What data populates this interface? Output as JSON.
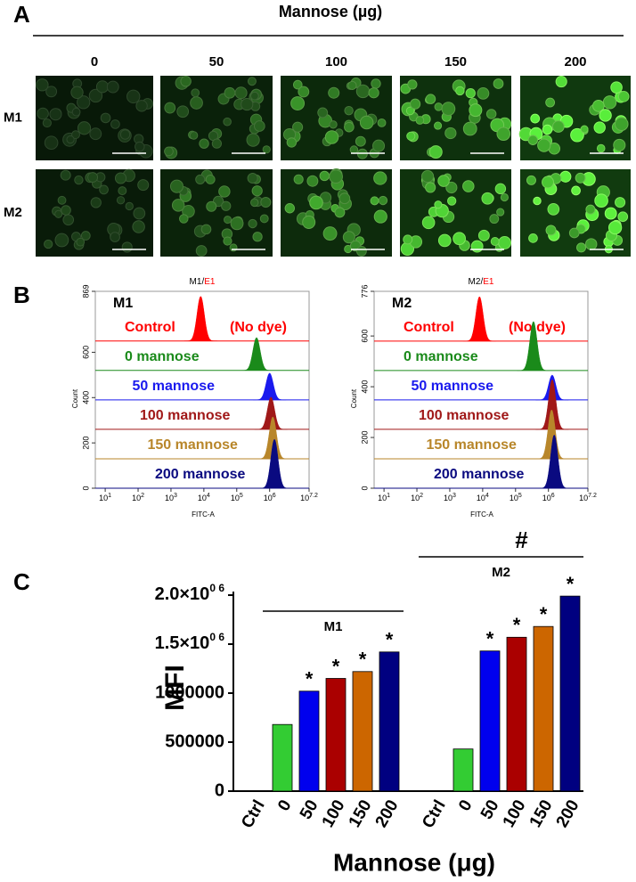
{
  "panel_labels": [
    "A",
    "B",
    "C"
  ],
  "micrographs": {
    "title": "Mannose (µg)",
    "columns": [
      "0",
      "50",
      "100",
      "150",
      "200"
    ],
    "rows": [
      "M1",
      "M2"
    ]
  },
  "chart_data": [
    {
      "type": "histogram_overlay",
      "title": "M1/",
      "title_gate": "E1",
      "title_gate_color": "#ff0000",
      "label": "M1",
      "annotation": "(No dye)",
      "xlabel": "FITC-A",
      "ylabel": "Count",
      "log_x": true,
      "xlim": [
        5,
        15848932
      ],
      "xticks": [
        {
          "value": 10,
          "label": "10",
          "exponent": "1"
        },
        {
          "value": 100,
          "label": "10",
          "exponent": "2"
        },
        {
          "value": 1000,
          "label": "10",
          "exponent": "3"
        },
        {
          "value": 10000,
          "label": "10",
          "exponent": "4"
        },
        {
          "value": 100000,
          "label": "10",
          "exponent": "5"
        },
        {
          "value": 1000000,
          "label": "10",
          "exponent": "6"
        },
        {
          "value": 15848932,
          "label": "10",
          "exponent": "7.2"
        }
      ],
      "ylim": [
        0,
        869
      ],
      "yticks": [
        0,
        200,
        400,
        600,
        869
      ],
      "series": [
        {
          "name": "Control",
          "color": "#ff0000",
          "offset": 650,
          "peak": 8000,
          "height": 197
        },
        {
          "name": "0 mannose",
          "color": "#1a8a1a",
          "offset": 520,
          "peak": 400000,
          "height": 145
        },
        {
          "name": "50 mannose",
          "color": "#1a1aee",
          "offset": 390,
          "peak": 1000000,
          "height": 118
        },
        {
          "name": "100 mannose",
          "color": "#a01818",
          "offset": 260,
          "peak": 1100000,
          "height": 142
        },
        {
          "name": "150 mannose",
          "color": "#b8862a",
          "offset": 130,
          "peak": 1250000,
          "height": 185
        },
        {
          "name": "200 mannose",
          "color": "#0a0a80",
          "offset": 0,
          "peak": 1400000,
          "height": 216
        }
      ]
    },
    {
      "type": "histogram_overlay",
      "title": "M2/",
      "title_gate": "E1",
      "title_gate_color": "#ff0000",
      "label": "M2",
      "annotation": "(No dye)",
      "xlabel": "FITC-A",
      "ylabel": "Count",
      "log_x": true,
      "xlim": [
        5,
        15848932
      ],
      "xticks": [
        {
          "value": 10,
          "label": "10",
          "exponent": "1"
        },
        {
          "value": 100,
          "label": "10",
          "exponent": "2"
        },
        {
          "value": 1000,
          "label": "10",
          "exponent": "3"
        },
        {
          "value": 10000,
          "label": "10",
          "exponent": "4"
        },
        {
          "value": 100000,
          "label": "10",
          "exponent": "5"
        },
        {
          "value": 1000000,
          "label": "10",
          "exponent": "6"
        },
        {
          "value": 15848932,
          "label": "10",
          "exponent": "7.2"
        }
      ],
      "ylim": [
        0,
        776
      ],
      "yticks": [
        0,
        200,
        400,
        600,
        776
      ],
      "series": [
        {
          "name": "Control",
          "color": "#ff0000",
          "offset": 580,
          "peak": 8000,
          "height": 175
        },
        {
          "name": "0 mannose",
          "color": "#1a8a1a",
          "offset": 464,
          "peak": 350000,
          "height": 193
        },
        {
          "name": "50 mannose",
          "color": "#1a1aee",
          "offset": 348,
          "peak": 1300000,
          "height": 98
        },
        {
          "name": "100 mannose",
          "color": "#a01818",
          "offset": 232,
          "peak": 1300000,
          "height": 196
        },
        {
          "name": "150 mannose",
          "color": "#b8862a",
          "offset": 116,
          "peak": 1250000,
          "height": 193
        },
        {
          "name": "200 mannose",
          "color": "#0a0a80",
          "offset": 0,
          "peak": 1500000,
          "height": 210
        }
      ]
    },
    {
      "type": "grouped_bar",
      "xlabel": "Mannose (μg)",
      "ylabel": "MFI",
      "categories": [
        "Ctrl",
        "0",
        "50",
        "100",
        "150",
        "200"
      ],
      "colors": [
        "#000000",
        "#33cc33",
        "#0000ee",
        "#aa0000",
        "#cc6600",
        "#000080"
      ],
      "ylim": [
        0,
        2000000
      ],
      "yticks": [
        0,
        500000,
        1000000,
        {
          "value": 1500000,
          "label": "1.5×10",
          "exponent": "0 6"
        },
        {
          "value": 2000000,
          "label": "2.0×10",
          "exponent": "0 6"
        }
      ],
      "groups": [
        {
          "name": "M1",
          "values": [
            0,
            680000,
            1020000,
            1150000,
            1220000,
            1420000
          ],
          "significance": [
            null,
            null,
            "*",
            "*",
            "*",
            "*"
          ]
        },
        {
          "name": "M2",
          "annotation": "#",
          "values": [
            0,
            430000,
            1430000,
            1570000,
            1680000,
            1990000
          ],
          "significance": [
            null,
            null,
            "*",
            "*",
            "*",
            "*"
          ]
        }
      ]
    }
  ]
}
